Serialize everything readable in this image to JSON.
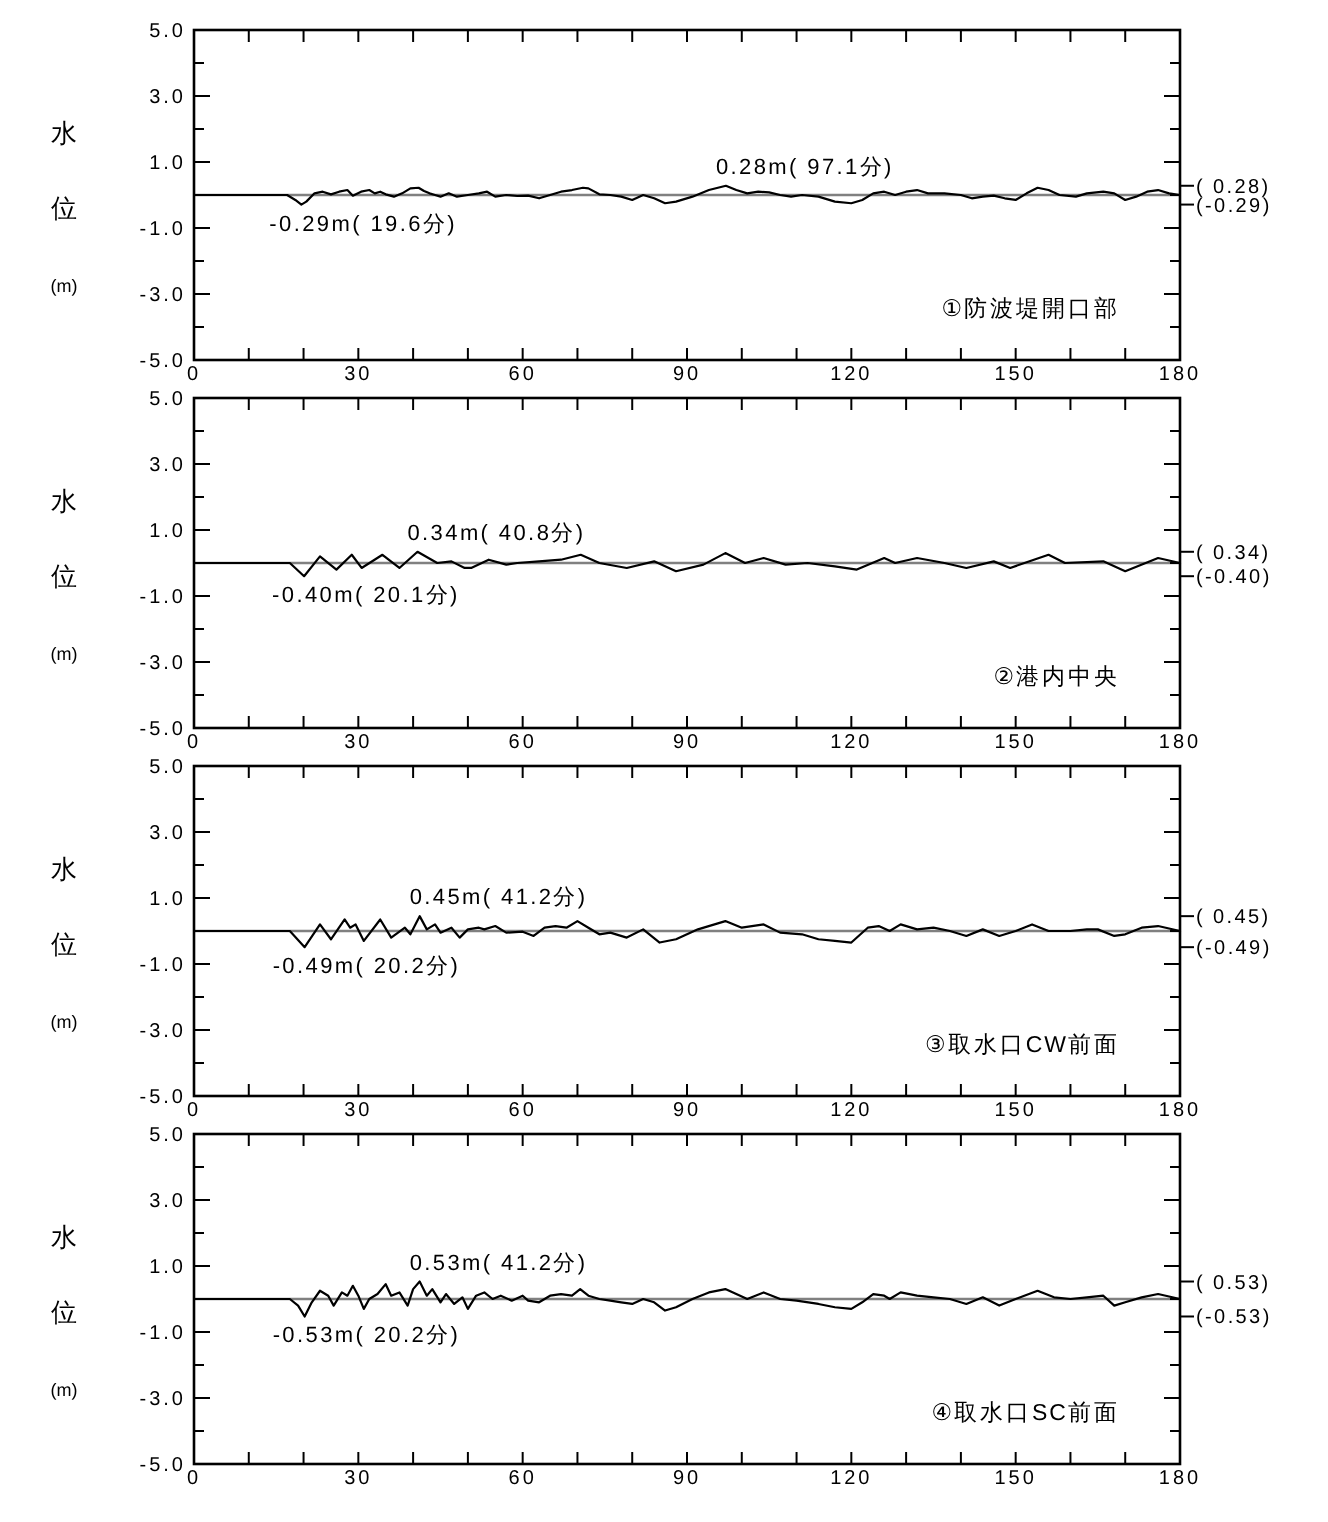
{
  "chart_data": [
    {
      "type": "line",
      "title": "①防波堤開口部",
      "ylabel": "水位(m)",
      "xlim": [
        0,
        180
      ],
      "ylim": [
        -5,
        5
      ],
      "xticks": [
        0,
        {
          "value": 10,
          "label": null
        },
        {
          "value": 20,
          "label": null
        },
        30,
        {
          "value": 40,
          "label": null
        },
        {
          "value": 50,
          "label": null
        },
        60,
        {
          "value": 70,
          "label": null
        },
        {
          "value": 80,
          "label": null
        },
        90,
        {
          "value": 100,
          "label": null
        },
        {
          "value": 110,
          "label": null
        },
        120,
        {
          "value": 130,
          "label": null
        },
        {
          "value": 140,
          "label": null
        },
        150,
        {
          "value": 160,
          "label": null
        },
        {
          "value": 170,
          "label": null
        },
        180
      ],
      "yticks": [
        {
          "value": -5,
          "label": "-5.0"
        },
        {
          "value": -4,
          "label": null
        },
        {
          "value": -3,
          "label": "-3.0"
        },
        {
          "value": -2,
          "label": null
        },
        {
          "value": -1,
          "label": "-1.0"
        },
        {
          "value": 0,
          "label": null
        },
        {
          "value": 1,
          "label": "1.0"
        },
        {
          "value": 2,
          "label": null
        },
        {
          "value": 3,
          "label": "3.0"
        },
        {
          "value": 4,
          "label": null
        },
        {
          "value": 5,
          "label": "5.0"
        }
      ],
      "y2lim": [
        -5,
        5
      ],
      "y2ticks": [
        {
          "value": 0.28,
          "label": "( 0.28)"
        },
        {
          "value": -0.29,
          "label": "(-0.29)"
        }
      ],
      "ref_lines": [
        {
          "axis": "y",
          "value": 0,
          "color": "#808080"
        }
      ],
      "annotations": [
        {
          "text": "0.28m( 97.1分)",
          "x": 97.1,
          "y": 0.28
        },
        {
          "text": "-0.29m( 19.6分)",
          "x": 19.6,
          "y": -0.29
        }
      ],
      "series": [
        {
          "color": "#000000",
          "x": [
            0,
            17,
            18.5,
            19.6,
            20.5,
            22,
            23.5,
            25,
            26.5,
            28,
            29,
            30.5,
            32,
            33,
            34,
            35,
            36.5,
            38,
            39.5,
            41,
            42,
            43,
            44,
            45,
            46.5,
            48,
            50,
            52,
            53.5,
            55,
            57,
            59,
            61,
            63,
            65,
            67,
            69,
            71,
            72,
            74,
            76,
            78,
            80,
            82,
            84,
            86,
            88,
            91,
            94,
            97.1,
            99,
            101,
            103,
            105,
            107,
            109,
            111,
            114,
            117,
            120,
            122,
            124,
            126,
            128,
            130,
            132,
            134,
            137,
            140,
            142,
            144,
            146,
            148,
            150,
            152,
            154,
            156,
            158,
            161,
            163,
            166,
            168,
            170,
            172,
            174,
            176,
            178,
            180
          ],
          "values": [
            0,
            0,
            -0.15,
            -0.29,
            -0.2,
            0.05,
            0.1,
            0.02,
            0.1,
            0.15,
            -0.02,
            0.1,
            0.15,
            0.05,
            0.1,
            0.02,
            -0.05,
            0.05,
            0.2,
            0.22,
            0.12,
            0.05,
            0,
            -0.05,
            0.05,
            -0.05,
            0,
            0.05,
            0.1,
            -0.05,
            0,
            -0.03,
            -0.02,
            -0.1,
            0,
            0.1,
            0.15,
            0.22,
            0.2,
            0.02,
            0,
            -0.05,
            -0.15,
            0,
            -0.1,
            -0.25,
            -0.2,
            -0.05,
            0.15,
            0.28,
            0.15,
            0.05,
            0.1,
            0.08,
            0,
            -0.05,
            0,
            -0.05,
            -0.2,
            -0.25,
            -0.15,
            0.05,
            0.1,
            0,
            0.1,
            0.15,
            0.05,
            0.05,
            0,
            -0.1,
            -0.05,
            -0.02,
            -0.1,
            -0.15,
            0.05,
            0.22,
            0.15,
            0,
            -0.05,
            0.05,
            0.1,
            0.05,
            -0.15,
            -0.05,
            0.1,
            0.15,
            0.05,
            0
          ]
        }
      ]
    },
    {
      "type": "line",
      "title": "②港内中央",
      "ylabel": "水位(m)",
      "xlim": [
        0,
        180
      ],
      "ylim": [
        -5,
        5
      ],
      "xticks": [
        0,
        {
          "value": 10,
          "label": null
        },
        {
          "value": 20,
          "label": null
        },
        30,
        {
          "value": 40,
          "label": null
        },
        {
          "value": 50,
          "label": null
        },
        60,
        {
          "value": 70,
          "label": null
        },
        {
          "value": 80,
          "label": null
        },
        90,
        {
          "value": 100,
          "label": null
        },
        {
          "value": 110,
          "label": null
        },
        120,
        {
          "value": 130,
          "label": null
        },
        {
          "value": 140,
          "label": null
        },
        150,
        {
          "value": 160,
          "label": null
        },
        {
          "value": 170,
          "label": null
        },
        180
      ],
      "yticks": [
        {
          "value": -5,
          "label": "-5.0"
        },
        {
          "value": -4,
          "label": null
        },
        {
          "value": -3,
          "label": "-3.0"
        },
        {
          "value": -2,
          "label": null
        },
        {
          "value": -1,
          "label": "-1.0"
        },
        {
          "value": 0,
          "label": null
        },
        {
          "value": 1,
          "label": "1.0"
        },
        {
          "value": 2,
          "label": null
        },
        {
          "value": 3,
          "label": "3.0"
        },
        {
          "value": 4,
          "label": null
        },
        {
          "value": 5,
          "label": "5.0"
        }
      ],
      "y2lim": [
        -5,
        5
      ],
      "y2ticks": [
        {
          "value": 0.34,
          "label": "( 0.34)"
        },
        {
          "value": -0.4,
          "label": "(-0.40)"
        }
      ],
      "ref_lines": [
        {
          "axis": "y",
          "value": 0,
          "color": "#808080"
        }
      ],
      "annotations": [
        {
          "text": "0.34m( 40.8分)",
          "x": 40.8,
          "y": 0.34
        },
        {
          "text": "-0.40m( 20.1分)",
          "x": 20.1,
          "y": -0.4
        }
      ],
      "series": [
        {
          "color": "#000000",
          "x": [
            0,
            17.5,
            20.1,
            23,
            26,
            28.8,
            30.6,
            34.4,
            37.5,
            40.8,
            44.4,
            47,
            49.4,
            50.6,
            53.8,
            57,
            59,
            63,
            67,
            70.6,
            74,
            79,
            84,
            88,
            93,
            97,
            100.6,
            104,
            108,
            112,
            117,
            121,
            126,
            128,
            132,
            137,
            141,
            146,
            149,
            156,
            159,
            166,
            170,
            176,
            180
          ],
          "values": [
            0,
            0,
            -0.4,
            0.2,
            -0.2,
            0.25,
            -0.15,
            0.25,
            -0.15,
            0.34,
            0,
            0.05,
            -0.15,
            -0.15,
            0.1,
            -0.05,
            0,
            0.05,
            0.1,
            0.25,
            0,
            -0.15,
            0.05,
            -0.25,
            -0.05,
            0.3,
            0,
            0.15,
            -0.05,
            0,
            -0.1,
            -0.2,
            0.15,
            0,
            0.15,
            0,
            -0.15,
            0.05,
            -0.15,
            0.25,
            0,
            0.05,
            -0.25,
            0.15,
            0
          ]
        }
      ]
    },
    {
      "type": "line",
      "title": "③取水口CW前面",
      "ylabel": "水位(m)",
      "xlim": [
        0,
        180
      ],
      "ylim": [
        -5,
        5
      ],
      "xticks": [
        0,
        {
          "value": 10,
          "label": null
        },
        {
          "value": 20,
          "label": null
        },
        30,
        {
          "value": 40,
          "label": null
        },
        {
          "value": 50,
          "label": null
        },
        60,
        {
          "value": 70,
          "label": null
        },
        {
          "value": 80,
          "label": null
        },
        90,
        {
          "value": 100,
          "label": null
        },
        {
          "value": 110,
          "label": null
        },
        120,
        {
          "value": 130,
          "label": null
        },
        {
          "value": 140,
          "label": null
        },
        150,
        {
          "value": 160,
          "label": null
        },
        {
          "value": 170,
          "label": null
        },
        180
      ],
      "yticks": [
        {
          "value": -5,
          "label": "-5.0"
        },
        {
          "value": -4,
          "label": null
        },
        {
          "value": -3,
          "label": "-3.0"
        },
        {
          "value": -2,
          "label": null
        },
        {
          "value": -1,
          "label": "-1.0"
        },
        {
          "value": 0,
          "label": null
        },
        {
          "value": 1,
          "label": "1.0"
        },
        {
          "value": 2,
          "label": null
        },
        {
          "value": 3,
          "label": "3.0"
        },
        {
          "value": 4,
          "label": null
        },
        {
          "value": 5,
          "label": "5.0"
        }
      ],
      "y2lim": [
        -5,
        5
      ],
      "y2ticks": [
        {
          "value": 0.45,
          "label": "( 0.45)"
        },
        {
          "value": -0.49,
          "label": "(-0.49)"
        }
      ],
      "ref_lines": [
        {
          "axis": "y",
          "value": 0,
          "color": "#808080"
        }
      ],
      "annotations": [
        {
          "text": "0.45m( 41.2分)",
          "x": 41.2,
          "y": 0.45
        },
        {
          "text": "-0.49m( 20.2分)",
          "x": 20.2,
          "y": -0.49
        }
      ],
      "series": [
        {
          "color": "#000000",
          "x": [
            0,
            17.5,
            20.2,
            23,
            25,
            27.5,
            28.5,
            29.5,
            31,
            34,
            36,
            38.5,
            39.5,
            41.2,
            42.5,
            44,
            45,
            47,
            48.5,
            50,
            52,
            53,
            55,
            57,
            60,
            62,
            64,
            66,
            68,
            70,
            72,
            74,
            76,
            79,
            82,
            85,
            88,
            92,
            97,
            100,
            104,
            107,
            111,
            114,
            117,
            120,
            123,
            125,
            127,
            129,
            132,
            135,
            138,
            141,
            144,
            147,
            150,
            153,
            156,
            160,
            163,
            165,
            168,
            170,
            173,
            176,
            180
          ],
          "values": [
            0,
            0,
            -0.49,
            0.2,
            -0.25,
            0.35,
            0.1,
            0.2,
            -0.3,
            0.35,
            -0.2,
            0.1,
            -0.1,
            0.45,
            0.05,
            0.2,
            -0.05,
            0.1,
            -0.2,
            0.05,
            0.1,
            0.05,
            0.15,
            -0.05,
            -0.02,
            -0.15,
            0.1,
            0.15,
            0.1,
            0.3,
            0.1,
            -0.1,
            -0.05,
            -0.2,
            0.05,
            -0.35,
            -0.25,
            0.05,
            0.3,
            0.1,
            0.2,
            -0.05,
            -0.1,
            -0.25,
            -0.3,
            -0.35,
            0.1,
            0.15,
            0,
            0.2,
            0.05,
            0.1,
            0,
            -0.15,
            0.05,
            -0.15,
            0,
            0.2,
            0,
            0,
            0.05,
            0.05,
            -0.15,
            -0.1,
            0.1,
            0.15,
            0
          ]
        }
      ]
    },
    {
      "type": "line",
      "title": "④取水口SC前面",
      "ylabel": "水位(m)",
      "xlim": [
        0,
        180
      ],
      "ylim": [
        -5,
        5
      ],
      "xticks": [
        0,
        {
          "value": 10,
          "label": null
        },
        {
          "value": 20,
          "label": null
        },
        30,
        {
          "value": 40,
          "label": null
        },
        {
          "value": 50,
          "label": null
        },
        60,
        {
          "value": 70,
          "label": null
        },
        {
          "value": 80,
          "label": null
        },
        90,
        {
          "value": 100,
          "label": null
        },
        {
          "value": 110,
          "label": null
        },
        120,
        {
          "value": 130,
          "label": null
        },
        {
          "value": 140,
          "label": null
        },
        150,
        {
          "value": 160,
          "label": null
        },
        {
          "value": 170,
          "label": null
        },
        180
      ],
      "yticks": [
        {
          "value": -5,
          "label": "-5.0"
        },
        {
          "value": -4,
          "label": null
        },
        {
          "value": -3,
          "label": "-3.0"
        },
        {
          "value": -2,
          "label": null
        },
        {
          "value": -1,
          "label": "-1.0"
        },
        {
          "value": 0,
          "label": null
        },
        {
          "value": 1,
          "label": "1.0"
        },
        {
          "value": 2,
          "label": null
        },
        {
          "value": 3,
          "label": "3.0"
        },
        {
          "value": 4,
          "label": null
        },
        {
          "value": 5,
          "label": "5.0"
        }
      ],
      "y2lim": [
        -5,
        5
      ],
      "y2ticks": [
        {
          "value": 0.53,
          "label": "( 0.53)"
        },
        {
          "value": -0.53,
          "label": "(-0.53)"
        }
      ],
      "ref_lines": [
        {
          "axis": "y",
          "value": 0,
          "color": "#808080"
        }
      ],
      "annotations": [
        {
          "text": "0.53m( 41.2分)",
          "x": 41.2,
          "y": 0.53
        },
        {
          "text": "-0.53m( 20.2分)",
          "x": 20.2,
          "y": -0.53
        }
      ],
      "series": [
        {
          "color": "#000000",
          "x": [
            0,
            17.5,
            19,
            20.2,
            21.5,
            23,
            24.5,
            25.5,
            27,
            28,
            29,
            30,
            31,
            32,
            33.5,
            35,
            36,
            37.5,
            39,
            40,
            41.2,
            42.5,
            43.5,
            45,
            46,
            47.5,
            49,
            50,
            51.5,
            53,
            54.5,
            56,
            58,
            60,
            61,
            63,
            65,
            67,
            69,
            70.5,
            72,
            74,
            76,
            78,
            80,
            82,
            84,
            86,
            88,
            91,
            94,
            97,
            99,
            101,
            104,
            107,
            110,
            114,
            117,
            120,
            122,
            124,
            126,
            127,
            129,
            132,
            135,
            138,
            141,
            144,
            147,
            150,
            154,
            157,
            160,
            163,
            166,
            168,
            170,
            173,
            176,
            180
          ],
          "values": [
            0,
            0,
            -0.2,
            -0.53,
            -0.1,
            0.25,
            0.1,
            -0.2,
            0.2,
            0.1,
            0.4,
            0.1,
            -0.3,
            0,
            0.15,
            0.45,
            0.1,
            0.2,
            -0.2,
            0.3,
            0.53,
            0.1,
            0.3,
            -0.1,
            0.15,
            -0.15,
            0.05,
            -0.3,
            0.1,
            0.2,
            0,
            0.1,
            -0.05,
            0.1,
            -0.05,
            -0.1,
            0.1,
            0.15,
            0.1,
            0.3,
            0.1,
            0,
            -0.05,
            -0.1,
            -0.15,
            0,
            -0.1,
            -0.35,
            -0.25,
            0,
            0.2,
            0.3,
            0.15,
            0,
            0.2,
            0,
            -0.05,
            -0.15,
            -0.25,
            -0.3,
            -0.1,
            0.15,
            0.1,
            0,
            0.2,
            0.1,
            0.05,
            0,
            -0.15,
            0.05,
            -0.2,
            0,
            0.25,
            0.05,
            0,
            0.05,
            0.1,
            -0.2,
            -0.1,
            0.05,
            0.15,
            0
          ]
        }
      ]
    }
  ]
}
